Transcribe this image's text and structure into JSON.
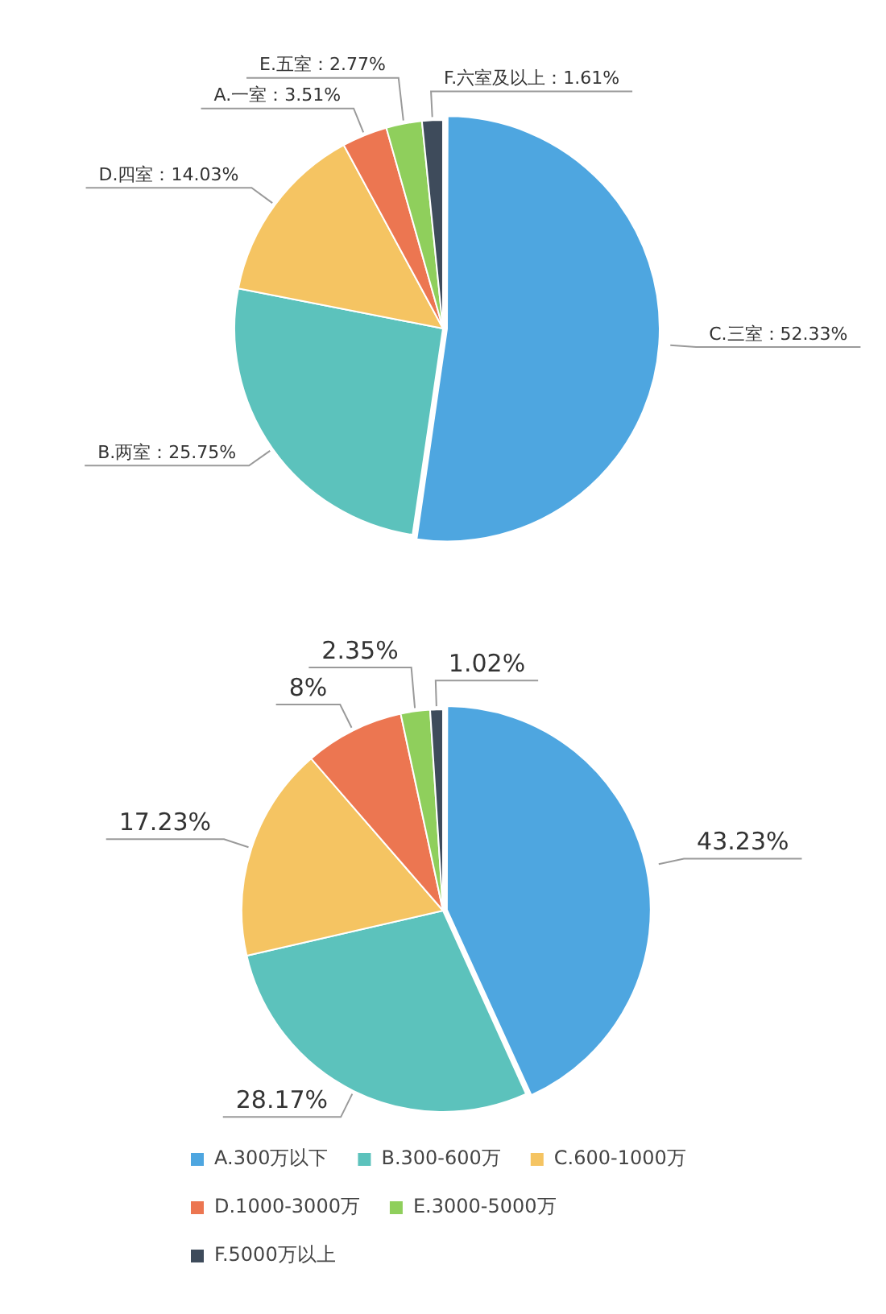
{
  "chart_data": [
    {
      "type": "pie",
      "categories": [
        "C.三室",
        "B.两室",
        "D.四室",
        "A.一室",
        "E.五室",
        "F.六室及以上"
      ],
      "values": [
        52.33,
        25.75,
        14.03,
        3.51,
        2.77,
        1.61
      ],
      "colors": [
        "#4ea6e0",
        "#5cc2bc",
        "#f5c462",
        "#ec7651",
        "#8fcf5c",
        "#3e4b5b"
      ],
      "value_labels": [
        "：52.33%",
        "：25.75%",
        "：14.03%",
        "：3.51%",
        "：2.77%",
        "：1.61%"
      ],
      "legend": false
    },
    {
      "type": "pie",
      "categories": [
        "A.300万以下",
        "B.300-600万",
        "C.600-1000万",
        "D.1000-3000万",
        "E.3000-5000万",
        "F.5000万以上"
      ],
      "values": [
        43.23,
        28.17,
        17.23,
        8,
        2.35,
        1.02
      ],
      "colors": [
        "#4ea6e0",
        "#5cc2bc",
        "#f5c462",
        "#ec7651",
        "#8fcf5c",
        "#3e4b5b"
      ],
      "value_labels": [
        "43.23%",
        "28.17%",
        "17.23%",
        "8%",
        "2.35%",
        "1.02%"
      ],
      "legend": "bottom"
    }
  ]
}
